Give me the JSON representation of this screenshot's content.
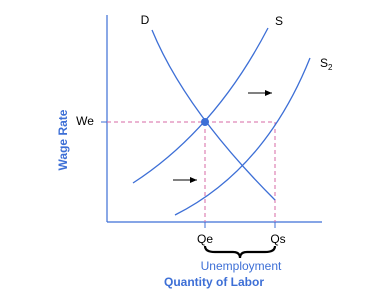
{
  "axes": {
    "y_label": "Wage Rate",
    "x_label": "Quantity of Labor"
  },
  "curves": {
    "demand": "D",
    "supply": "S",
    "supply2": "S",
    "supply2_subscript": "2"
  },
  "ticks": {
    "we": "We",
    "qe": "Qe",
    "qs": "Qs"
  },
  "annotation": "Unemployment"
}
